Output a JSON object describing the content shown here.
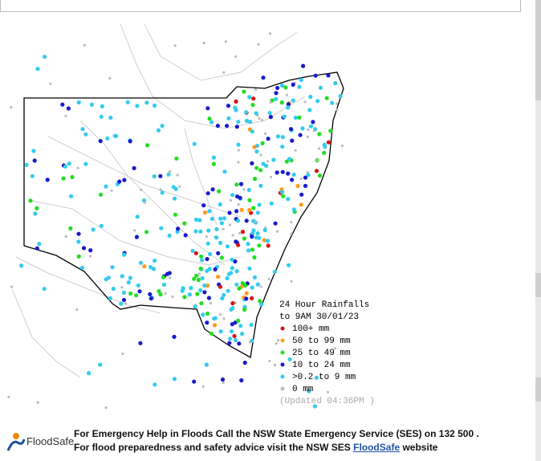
{
  "map": {
    "title": "24 Hour Rainfalls",
    "period": "to 9AM 30/01/23",
    "legend": [
      {
        "label": "100+ mm",
        "color": "#e01010"
      },
      {
        "label": "50  to 99 mm",
        "color": "#ff9a1a"
      },
      {
        "label": "25  to 49 mm",
        "color": "#22dd22"
      },
      {
        "label": "10  to 24 mm",
        "color": "#1a1acc"
      },
      {
        "label": ">0.2 to 9 mm",
        "color": "#33ccee"
      },
      {
        "label": "0 mm",
        "color": "#bbbbbb"
      }
    ],
    "updated": "(Updated 04:36PM  )"
  },
  "footer": {
    "logo": "FloodSafe",
    "line1": "For Emergency Help in Floods Call the NSW State Emergency Service (SES) on 132 500 .",
    "line2": "For flood preparedness and safety advice visit the NSW SES",
    "link": "FloodSafe",
    "line2_end": "website"
  }
}
